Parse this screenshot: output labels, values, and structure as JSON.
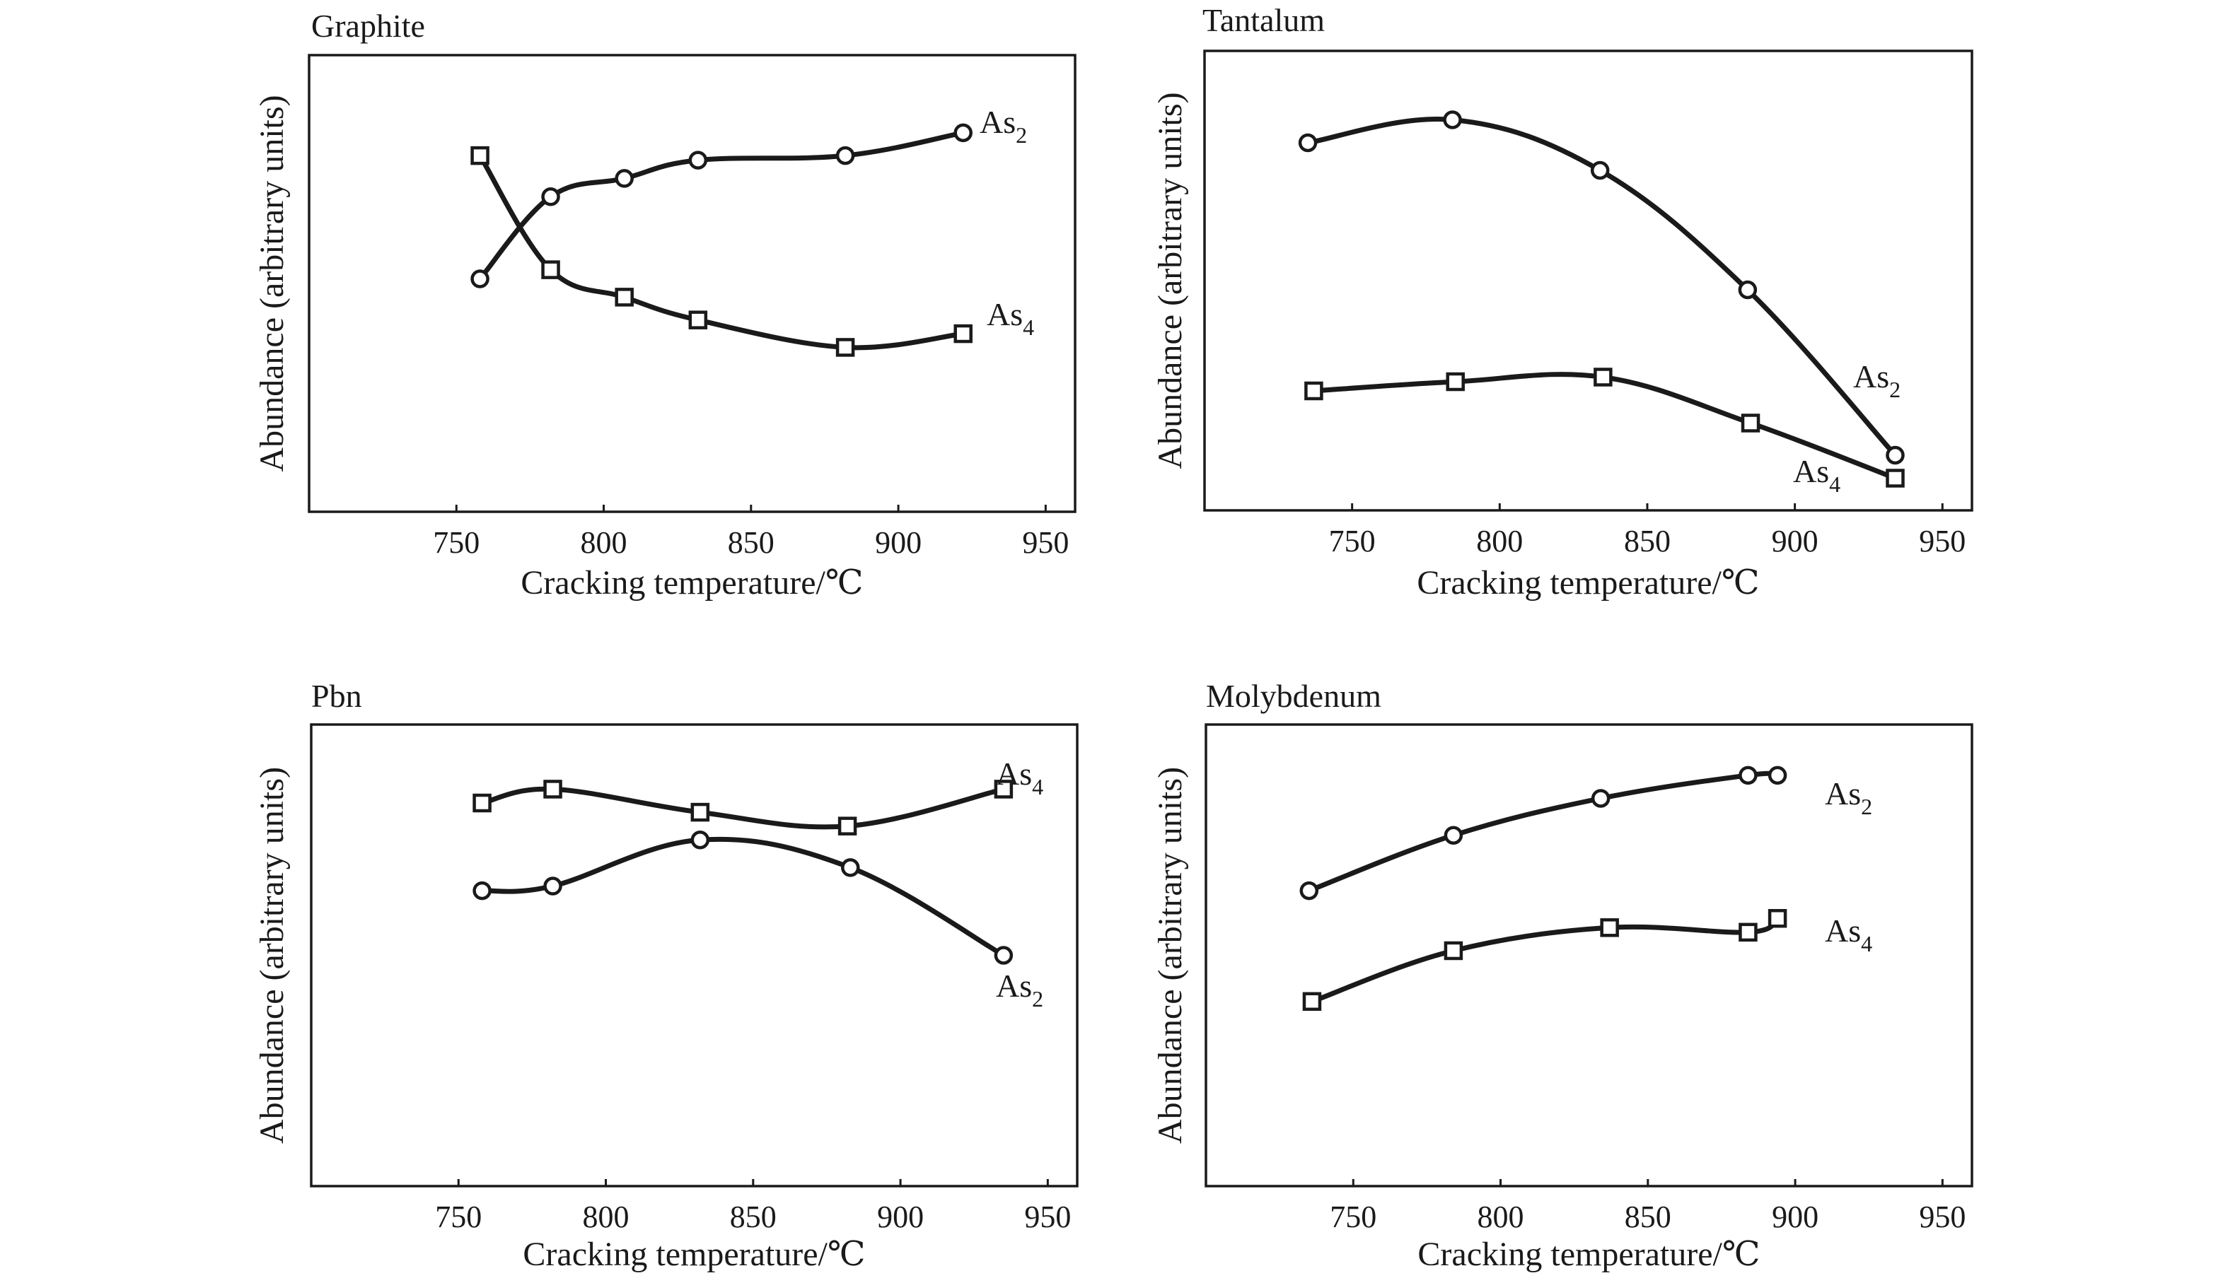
{
  "chart_data": [
    {
      "type": "line",
      "title": "Graphite",
      "xlabel": "Cracking temperature/℃",
      "ylabel": "Abundance (arbitrary units)",
      "xlim": [
        700,
        960
      ],
      "ylim": [
        0,
        10
      ],
      "xticks": [
        750,
        800,
        850,
        900,
        950
      ],
      "yticks": [],
      "grid": false,
      "series": [
        {
          "name": "As2",
          "marker": "circle",
          "x": [
            758,
            782,
            807,
            832,
            882,
            922
          ],
          "y": [
            5.1,
            6.9,
            7.3,
            7.7,
            7.8,
            8.3
          ]
        },
        {
          "name": "As4",
          "marker": "square",
          "x": [
            758,
            782,
            807,
            832,
            882,
            922
          ],
          "y": [
            7.8,
            5.3,
            4.7,
            4.2,
            3.6,
            3.9
          ]
        }
      ]
    },
    {
      "type": "line",
      "title": "Tantalum",
      "xlabel": "Cracking temperature/℃",
      "ylabel": "Abundance (arbitrary units)",
      "xlim": [
        700,
        960
      ],
      "ylim": [
        0,
        10
      ],
      "xticks": [
        750,
        800,
        850,
        900,
        950
      ],
      "yticks": [],
      "grid": false,
      "series": [
        {
          "name": "As2",
          "marker": "circle",
          "x": [
            735,
            784,
            834,
            884,
            934
          ],
          "y": [
            8.0,
            8.5,
            7.4,
            4.8,
            1.2
          ]
        },
        {
          "name": "As4",
          "marker": "square",
          "x": [
            737,
            785,
            835,
            885,
            934
          ],
          "y": [
            2.6,
            2.8,
            2.9,
            1.9,
            0.7
          ]
        }
      ]
    },
    {
      "type": "line",
      "title": "Pbn",
      "xlabel": "Cracking temperature/℃",
      "ylabel": "Abundance (arbitrary units)",
      "xlim": [
        700,
        960
      ],
      "ylim": [
        0,
        10
      ],
      "xticks": [
        750,
        800,
        850,
        900,
        950
      ],
      "yticks": [],
      "grid": false,
      "series": [
        {
          "name": "As4",
          "marker": "square",
          "x": [
            758,
            782,
            832,
            882,
            935
          ],
          "y": [
            8.3,
            8.6,
            8.1,
            7.8,
            8.6
          ]
        },
        {
          "name": "As2",
          "marker": "circle",
          "x": [
            758,
            782,
            832,
            883,
            935
          ],
          "y": [
            6.4,
            6.5,
            7.5,
            6.9,
            5.0
          ]
        }
      ]
    },
    {
      "type": "line",
      "title": "Molybdenum",
      "xlabel": "Cracking temperature/℃",
      "ylabel": "Abundance (arbitrary units)",
      "xlim": [
        700,
        960
      ],
      "ylim": [
        0,
        10
      ],
      "xticks": [
        750,
        800,
        850,
        900,
        950
      ],
      "yticks": [],
      "grid": false,
      "series": [
        {
          "name": "As2",
          "marker": "circle",
          "x": [
            735,
            784,
            834,
            884,
            894
          ],
          "y": [
            6.4,
            7.6,
            8.4,
            8.9,
            8.9
          ]
        },
        {
          "name": "As4",
          "marker": "square",
          "x": [
            736,
            784,
            837,
            884,
            894
          ],
          "y": [
            4.0,
            5.1,
            5.6,
            5.5,
            5.8
          ]
        }
      ]
    }
  ]
}
